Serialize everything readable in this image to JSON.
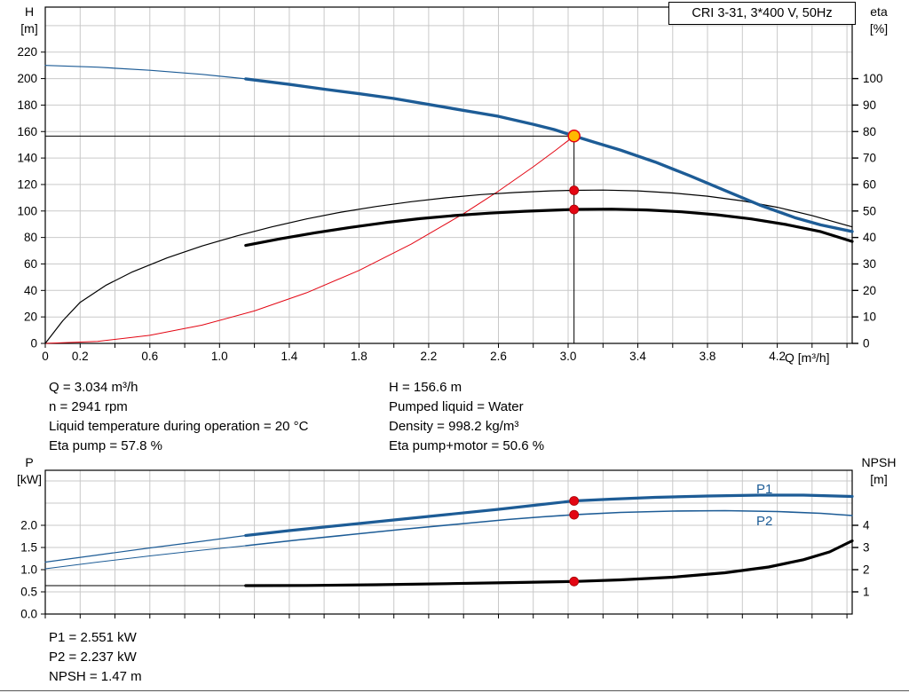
{
  "header": {
    "title_box": "CRI 3-31, 3*400 V, 50Hz"
  },
  "colors": {
    "curve_blue": "#1d5c96",
    "curve_black": "#000000",
    "curve_red": "#e30613",
    "duty_fill": "#ffb900",
    "dot_red": "#e30613",
    "grid": "#c9c9c9"
  },
  "info_top": {
    "left": [
      "Q = 3.034 m³/h",
      "n = 2941 rpm",
      "Liquid temperature during operation = 20 °C",
      "Eta pump = 57.8 %"
    ],
    "right": [
      "H = 156.6 m",
      "Pumped liquid = Water",
      "Density = 998.2 kg/m³",
      "Eta pump+motor = 50.6 %"
    ]
  },
  "info_bottom": [
    "P1 = 2.551 kW",
    "P2 = 2.237 kW",
    "NPSH = 1.47 m"
  ],
  "chart_data": [
    {
      "id": "qh-eta",
      "type": "line",
      "title": "CRI 3-31, 3*400 V, 50Hz",
      "x_axis": {
        "label": "Q [m³/h]",
        "min": 0,
        "max": 4.63,
        "tick_step": 0.2,
        "labeled_ticks": [
          "0",
          "0.2",
          "0.6",
          "1.0",
          "1.4",
          "1.8",
          "2.2",
          "2.6",
          "3.0",
          "3.4",
          "3.8",
          "4.2"
        ]
      },
      "y_left": {
        "label_lines": [
          "H",
          "[m]"
        ],
        "min": 0,
        "max": 254,
        "ticks": [
          "0",
          "20",
          "40",
          "60",
          "80",
          "100",
          "120",
          "140",
          "160",
          "180",
          "200",
          "220"
        ],
        "grid_values": [
          20,
          40,
          60,
          80,
          100,
          120,
          140,
          160,
          180,
          200,
          220,
          240
        ]
      },
      "y_right": {
        "label_lines": [
          "eta",
          "[%]"
        ],
        "min": 0,
        "max": 127,
        "ticks": [
          "0",
          "10",
          "20",
          "30",
          "40",
          "50",
          "60",
          "70",
          "80",
          "90",
          "100"
        ]
      },
      "series": [
        {
          "name": "system-curve",
          "axis": "left",
          "color": "#e30613",
          "width": 1,
          "points": [
            [
              0,
              0
            ],
            [
              0.3,
              1.5
            ],
            [
              0.6,
              6.1
            ],
            [
              0.9,
              13.8
            ],
            [
              1.2,
              24.5
            ],
            [
              1.5,
              38.3
            ],
            [
              1.8,
              55.1
            ],
            [
              2.1,
              75
            ],
            [
              2.4,
              98
            ],
            [
              2.6,
              115
            ],
            [
              2.8,
              133.4
            ],
            [
              2.93,
              146
            ],
            [
              3.034,
              156.6
            ]
          ]
        },
        {
          "name": "eta-pump-curve",
          "axis": "right",
          "color": "#000000",
          "width": 1.2,
          "points": [
            [
              0,
              0
            ],
            [
              0.1,
              8.5
            ],
            [
              0.2,
              15.5
            ],
            [
              0.35,
              22
            ],
            [
              0.5,
              27
            ],
            [
              0.7,
              32.3
            ],
            [
              0.9,
              36.8
            ],
            [
              1.1,
              40.6
            ],
            [
              1.3,
              44
            ],
            [
              1.5,
              47
            ],
            [
              1.7,
              49.6
            ],
            [
              1.9,
              51.7
            ],
            [
              2.1,
              53.5
            ],
            [
              2.3,
              55
            ],
            [
              2.5,
              56.2
            ],
            [
              2.7,
              57
            ],
            [
              2.9,
              57.6
            ],
            [
              3.034,
              57.8
            ],
            [
              3.2,
              57.9
            ],
            [
              3.4,
              57.6
            ],
            [
              3.6,
              56.8
            ],
            [
              3.8,
              55.6
            ],
            [
              4.0,
              53.8
            ],
            [
              4.2,
              51.4
            ],
            [
              4.4,
              48.3
            ],
            [
              4.63,
              44
            ]
          ]
        },
        {
          "name": "eta-pump-motor-curve",
          "axis": "right",
          "color": "#000000",
          "width": 3.2,
          "points": [
            [
              1.15,
              37
            ],
            [
              1.35,
              39.5
            ],
            [
              1.55,
              41.8
            ],
            [
              1.75,
              43.8
            ],
            [
              1.95,
              45.6
            ],
            [
              2.15,
              47.1
            ],
            [
              2.35,
              48.3
            ],
            [
              2.55,
              49.2
            ],
            [
              2.75,
              49.9
            ],
            [
              2.95,
              50.4
            ],
            [
              3.034,
              50.6
            ],
            [
              3.25,
              50.7
            ],
            [
              3.45,
              50.4
            ],
            [
              3.65,
              49.7
            ],
            [
              3.85,
              48.6
            ],
            [
              4.05,
              47
            ],
            [
              4.25,
              44.9
            ],
            [
              4.45,
              42.2
            ],
            [
              4.63,
              38.5
            ]
          ]
        },
        {
          "name": "qh-lead-curve",
          "axis": "left",
          "color": "#1d5c96",
          "width": 1.2,
          "points": [
            [
              0,
              210
            ],
            [
              0.3,
              208.6
            ],
            [
              0.6,
              206.3
            ],
            [
              0.9,
              203.2
            ],
            [
              1.15,
              199.8
            ]
          ]
        },
        {
          "name": "qh-curve",
          "axis": "left",
          "color": "#1d5c96",
          "width": 3.4,
          "points": [
            [
              1.15,
              199.8
            ],
            [
              1.4,
              195.6
            ],
            [
              1.6,
              192
            ],
            [
              1.8,
              188.6
            ],
            [
              2.0,
              185
            ],
            [
              2.2,
              180.5
            ],
            [
              2.4,
              176
            ],
            [
              2.6,
              171.5
            ],
            [
              2.8,
              165.5
            ],
            [
              2.92,
              161.5
            ],
            [
              3.034,
              156.6
            ],
            [
              3.15,
              152
            ],
            [
              3.3,
              146
            ],
            [
              3.5,
              137
            ],
            [
              3.7,
              126.5
            ],
            [
              3.9,
              115.5
            ],
            [
              4.1,
              104.5
            ],
            [
              4.3,
              95
            ],
            [
              4.45,
              89.5
            ],
            [
              4.63,
              84.5
            ]
          ]
        }
      ],
      "duty_point": {
        "q": 3.034,
        "h": 156.6
      },
      "marker_dots": [
        {
          "axis": "right",
          "q": 3.034,
          "v": 57.8
        },
        {
          "axis": "right",
          "q": 3.034,
          "v": 50.6
        }
      ]
    },
    {
      "id": "power-npsh",
      "type": "line",
      "x_axis": {
        "label": "",
        "min": 0,
        "max": 4.63,
        "tick_step": 0.2,
        "labeled_ticks": []
      },
      "y_left": {
        "label_lines": [
          "P",
          "[kW]"
        ],
        "min": 0,
        "max": 3.24,
        "ticks": [
          "0.0",
          "0.5",
          "1.0",
          "1.5",
          "2.0"
        ],
        "grid_values": [
          0.5,
          1.0,
          1.5,
          2.0,
          2.5,
          3.0
        ]
      },
      "y_right": {
        "label_lines": [
          "NPSH",
          "[m]"
        ],
        "min": 0,
        "max": 6.48,
        "ticks": [
          "1",
          "2",
          "3",
          "4"
        ]
      },
      "series": [
        {
          "name": "p2-lead-curve",
          "axis": "left",
          "color": "#1d5c96",
          "width": 1,
          "points": [
            [
              0,
              1.02
            ],
            [
              0.3,
              1.17
            ],
            [
              0.6,
              1.31
            ],
            [
              0.9,
              1.44
            ],
            [
              1.15,
              1.54
            ]
          ]
        },
        {
          "name": "p2-curve",
          "axis": "left",
          "color": "#1d5c96",
          "width": 1.6,
          "points": [
            [
              1.15,
              1.54
            ],
            [
              1.45,
              1.67
            ],
            [
              1.75,
              1.79
            ],
            [
              2.05,
              1.91
            ],
            [
              2.35,
              2.02
            ],
            [
              2.65,
              2.13
            ],
            [
              2.85,
              2.19
            ],
            [
              3.034,
              2.237
            ],
            [
              3.3,
              2.29
            ],
            [
              3.6,
              2.32
            ],
            [
              3.9,
              2.33
            ],
            [
              4.2,
              2.31
            ],
            [
              4.45,
              2.27
            ],
            [
              4.63,
              2.22
            ]
          ]
        },
        {
          "name": "p1-lead-curve",
          "axis": "left",
          "color": "#1d5c96",
          "width": 1.2,
          "points": [
            [
              0,
              1.17
            ],
            [
              0.3,
              1.33
            ],
            [
              0.6,
              1.49
            ],
            [
              0.9,
              1.64
            ],
            [
              1.15,
              1.77
            ]
          ]
        },
        {
          "name": "p1-curve",
          "axis": "left",
          "color": "#1d5c96",
          "width": 3.2,
          "points": [
            [
              1.15,
              1.77
            ],
            [
              1.4,
              1.88
            ],
            [
              1.7,
              2.0
            ],
            [
              2.0,
              2.12
            ],
            [
              2.3,
              2.24
            ],
            [
              2.6,
              2.36
            ],
            [
              2.85,
              2.47
            ],
            [
              3.034,
              2.551
            ],
            [
              3.25,
              2.59
            ],
            [
              3.5,
              2.63
            ],
            [
              3.8,
              2.66
            ],
            [
              4.1,
              2.68
            ],
            [
              4.35,
              2.68
            ],
            [
              4.63,
              2.65
            ]
          ]
        },
        {
          "name": "npsh-lead-curve",
          "axis": "right",
          "color": "#000000",
          "width": 1,
          "points": [
            [
              0,
              1.28
            ],
            [
              0.6,
              1.28
            ],
            [
              1.15,
              1.28
            ]
          ]
        },
        {
          "name": "npsh-curve",
          "axis": "right",
          "color": "#000000",
          "width": 3.2,
          "points": [
            [
              1.15,
              1.28
            ],
            [
              1.5,
              1.29
            ],
            [
              1.9,
              1.32
            ],
            [
              2.3,
              1.37
            ],
            [
              2.7,
              1.42
            ],
            [
              3.034,
              1.47
            ],
            [
              3.3,
              1.54
            ],
            [
              3.6,
              1.66
            ],
            [
              3.9,
              1.86
            ],
            [
              4.15,
              2.12
            ],
            [
              4.35,
              2.45
            ],
            [
              4.5,
              2.8
            ],
            [
              4.63,
              3.3
            ]
          ]
        }
      ],
      "marker_dots": [
        {
          "axis": "left",
          "q": 3.034,
          "v": 2.551
        },
        {
          "axis": "left",
          "q": 3.034,
          "v": 2.237
        },
        {
          "axis": "right",
          "q": 3.034,
          "v": 1.47
        }
      ],
      "curve_labels": [
        {
          "text": "P1",
          "q": 4.08,
          "v": 2.72
        },
        {
          "text": "P2",
          "q": 4.08,
          "v": 2.0
        }
      ]
    }
  ]
}
